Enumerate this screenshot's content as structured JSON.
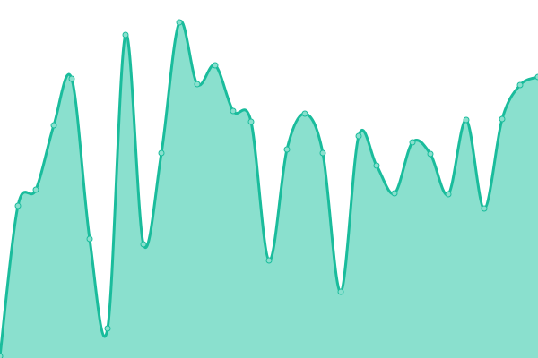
{
  "chart_data": {
    "type": "area",
    "title": "",
    "xlabel": "",
    "ylabel": "",
    "x": [
      0,
      1,
      2,
      3,
      4,
      5,
      6,
      7,
      8,
      9,
      10,
      11,
      12,
      13,
      14,
      15,
      16,
      17,
      18,
      19,
      20,
      21,
      22,
      23,
      24,
      25,
      26,
      27,
      28,
      29,
      30
    ],
    "values": [
      2,
      170,
      188,
      260,
      312,
      133,
      33,
      361,
      127,
      229,
      375,
      306,
      327,
      276,
      264,
      109,
      233,
      273,
      229,
      74,
      248,
      215,
      184,
      241,
      228,
      183,
      266,
      167,
      267,
      305,
      314
    ],
    "ylim": [
      0,
      400
    ],
    "xlim": [
      0,
      30
    ],
    "grid": false,
    "axes_visible": false,
    "smooth": true,
    "colors": {
      "line": "#1abc9c",
      "fill": "#8ae0ce",
      "marker_fill": "#8ae0ce",
      "marker_stroke": "#1abc9c"
    }
  }
}
